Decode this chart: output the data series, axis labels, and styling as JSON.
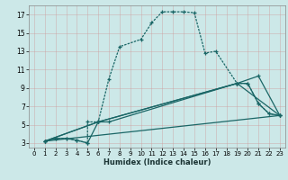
{
  "title": "",
  "xlabel": "Humidex (Indice chaleur)",
  "bg_color": "#cce8e8",
  "grid_color": "#b0c8c8",
  "line_color": "#1a6666",
  "xlim": [
    -0.5,
    23.5
  ],
  "ylim": [
    2.5,
    18.0
  ],
  "xticks": [
    0,
    1,
    2,
    3,
    4,
    5,
    6,
    7,
    8,
    9,
    10,
    11,
    12,
    13,
    14,
    15,
    16,
    17,
    18,
    19,
    20,
    21,
    22,
    23
  ],
  "yticks": [
    3,
    5,
    7,
    9,
    11,
    13,
    15,
    17
  ],
  "series1_x": [
    1,
    2,
    3,
    4,
    5,
    5,
    6,
    7,
    8,
    10,
    11,
    12,
    13,
    14,
    15,
    16,
    17,
    19,
    20,
    21,
    22,
    23
  ],
  "series1_y": [
    3.2,
    3.5,
    3.5,
    3.3,
    3.0,
    5.3,
    5.3,
    10.0,
    13.5,
    14.3,
    16.1,
    17.3,
    17.3,
    17.3,
    17.2,
    12.8,
    13.0,
    9.5,
    9.5,
    7.3,
    6.2,
    6.0
  ],
  "series2_x": [
    1,
    2,
    3,
    4,
    5,
    6,
    7,
    19,
    20,
    21,
    22,
    23
  ],
  "series2_y": [
    3.2,
    3.5,
    3.5,
    3.3,
    3.0,
    5.3,
    5.3,
    9.5,
    9.5,
    7.3,
    6.2,
    6.0
  ],
  "series3_x": [
    1,
    6,
    19,
    23
  ],
  "series3_y": [
    3.2,
    5.3,
    9.5,
    6.0
  ],
  "series4_x": [
    1,
    23
  ],
  "series4_y": [
    3.2,
    6.0
  ],
  "series5_x": [
    1,
    6,
    19,
    21,
    23
  ],
  "series5_y": [
    3.2,
    5.3,
    9.5,
    10.3,
    6.0
  ]
}
